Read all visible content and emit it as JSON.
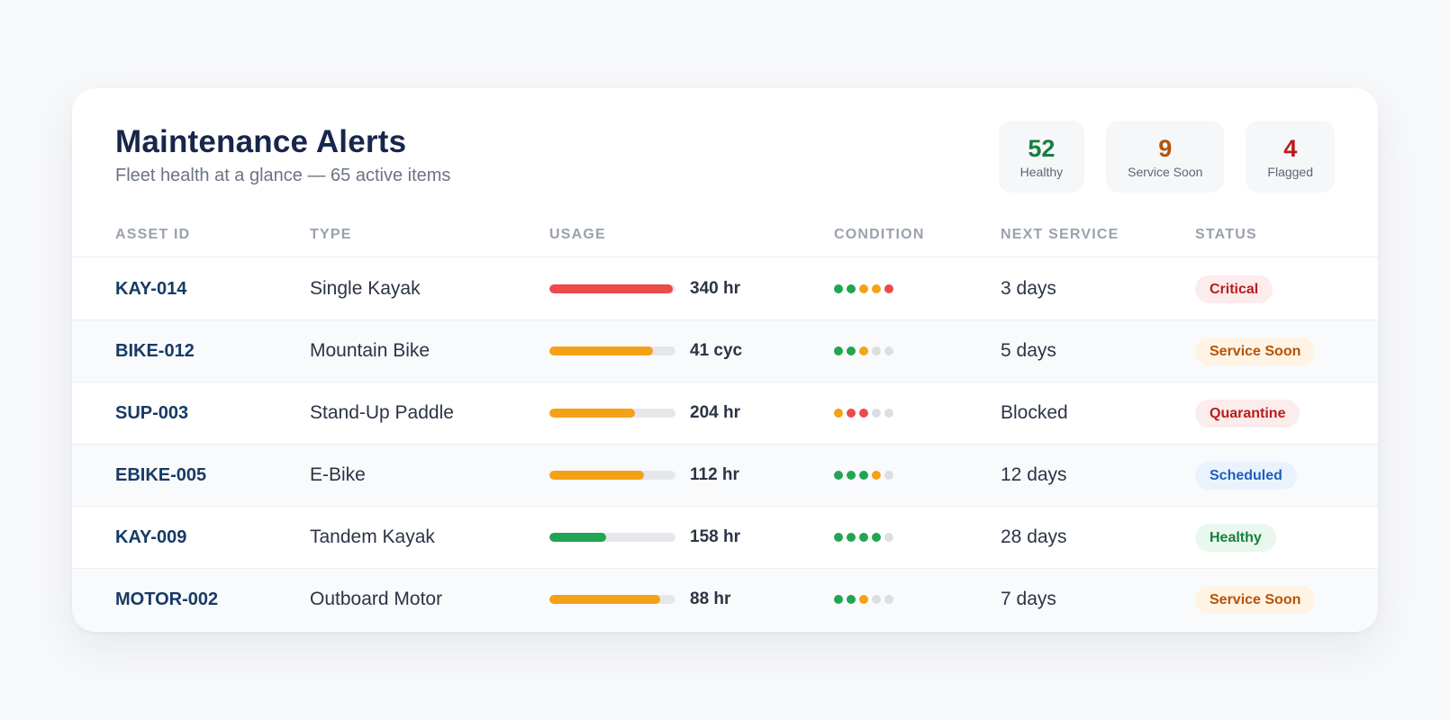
{
  "header": {
    "title": "Maintenance Alerts",
    "subtitle": "Fleet health at a glance — 65 active items"
  },
  "stats": [
    {
      "value": "52",
      "label": "Healthy",
      "color": "#15803d"
    },
    {
      "value": "9",
      "label": "Service Soon",
      "color": "#b45309"
    },
    {
      "value": "4",
      "label": "Flagged",
      "color": "#b91c1c"
    }
  ],
  "columns": [
    "ASSET ID",
    "TYPE",
    "USAGE",
    "CONDITION",
    "NEXT SERVICE",
    "STATUS"
  ],
  "colors": {
    "green": "#22a552",
    "amber": "#f4a118",
    "red": "#ee4a4a",
    "grey": "#dcdee2"
  },
  "rows": [
    {
      "asset": "KAY-014",
      "type": "Single Kayak",
      "usage_pct": 98,
      "usage_color": "red",
      "usage_label": "340 hr",
      "condition": [
        "green",
        "green",
        "amber",
        "amber",
        "red"
      ],
      "next": "3 days",
      "status": "Critical",
      "status_fg": "#b91c1c",
      "status_bg": "#fdecec"
    },
    {
      "asset": "BIKE-012",
      "type": "Mountain Bike",
      "usage_pct": 82,
      "usage_color": "amber",
      "usage_label": "41 cyc",
      "condition": [
        "green",
        "green",
        "amber",
        "grey",
        "grey"
      ],
      "next": "5 days",
      "status": "Service Soon",
      "status_fg": "#b45309",
      "status_bg": "#fff3e3"
    },
    {
      "asset": "SUP-003",
      "type": "Stand-Up Paddle",
      "usage_pct": 68,
      "usage_color": "amber",
      "usage_label": "204 hr",
      "condition": [
        "amber",
        "red",
        "red",
        "grey",
        "grey"
      ],
      "next": "Blocked",
      "status": "Quarantine",
      "status_fg": "#b91c1c",
      "status_bg": "#fdecec"
    },
    {
      "asset": "EBIKE-005",
      "type": "E-Bike",
      "usage_pct": 75,
      "usage_color": "amber",
      "usage_label": "112 hr",
      "condition": [
        "green",
        "green",
        "green",
        "amber",
        "grey"
      ],
      "next": "12 days",
      "status": "Scheduled",
      "status_fg": "#1d5fbf",
      "status_bg": "#eaf3fd"
    },
    {
      "asset": "KAY-009",
      "type": "Tandem Kayak",
      "usage_pct": 45,
      "usage_color": "green",
      "usage_label": "158 hr",
      "condition": [
        "green",
        "green",
        "green",
        "green",
        "grey"
      ],
      "next": "28 days",
      "status": "Healthy",
      "status_fg": "#15803d",
      "status_bg": "#e9f7ee"
    },
    {
      "asset": "MOTOR-002",
      "type": "Outboard Motor",
      "usage_pct": 88,
      "usage_color": "amber",
      "usage_label": "88 hr",
      "condition": [
        "green",
        "green",
        "amber",
        "grey",
        "grey"
      ],
      "next": "7 days",
      "status": "Service Soon",
      "status_fg": "#b45309",
      "status_bg": "#fff3e3"
    }
  ]
}
